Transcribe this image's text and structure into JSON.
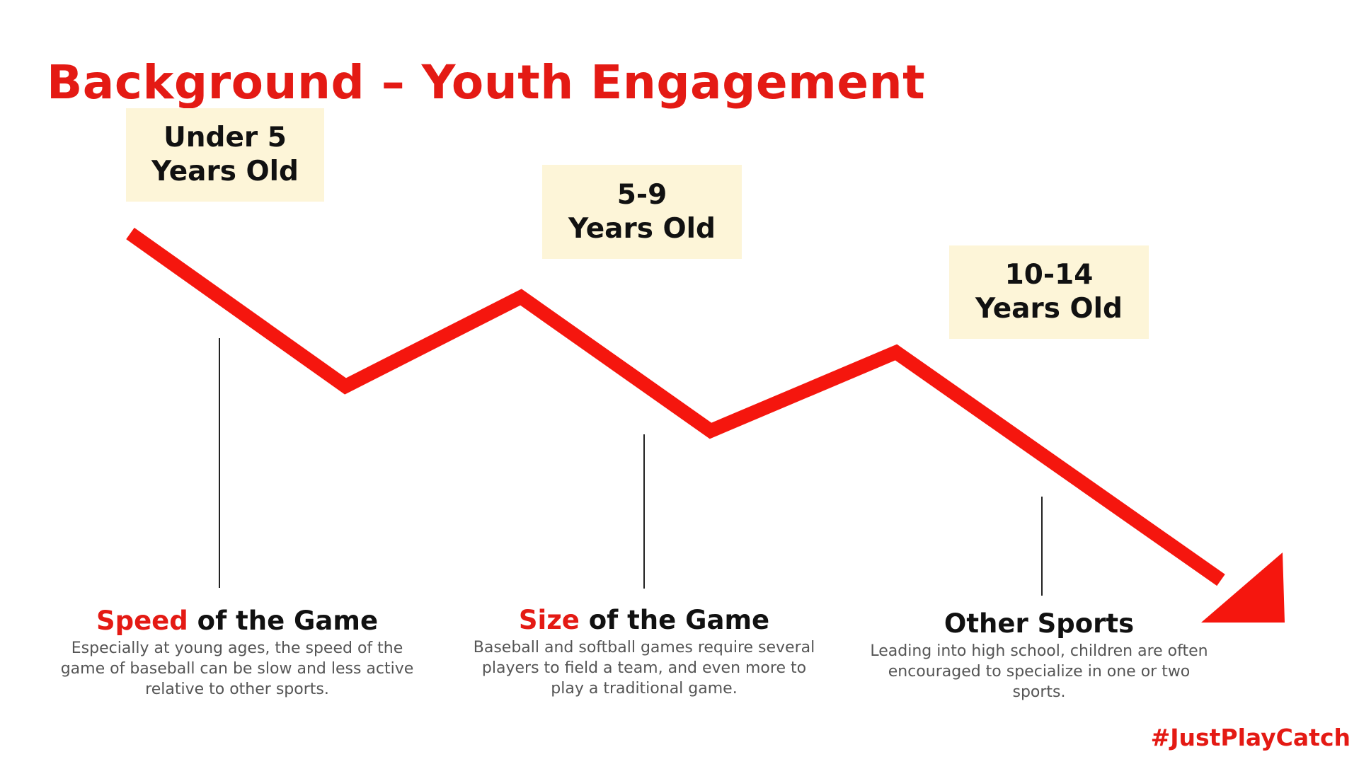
{
  "title": "Background – Youth Engagement",
  "age_groups": [
    {
      "line1": "Under 5",
      "line2": "Years Old"
    },
    {
      "line1": "5-9",
      "line2": "Years Old"
    },
    {
      "line1": "10-14",
      "line2": "Years Old"
    }
  ],
  "factors": [
    {
      "accent": "Speed",
      "rest": " of the Game",
      "description": "Especially at young ages, the speed of the game of baseball can be slow and less active relative to other sports."
    },
    {
      "accent": "Size",
      "rest": " of the Game",
      "description": "Baseball and softball games require several players to field a team, and even more to play a traditional game."
    },
    {
      "accent": "",
      "rest": "Other Sports",
      "description": "Leading into high school, children are often encouraged to specialize in one or two sports."
    }
  ],
  "hashtag": "#JustPlayCatch",
  "colors": {
    "accent": "#e41a14",
    "box_background": "#fdf5d8",
    "heading": "#111111",
    "body_text": "#555555"
  },
  "icons": {
    "trend_arrow": "declining-zigzag-arrow-icon"
  }
}
